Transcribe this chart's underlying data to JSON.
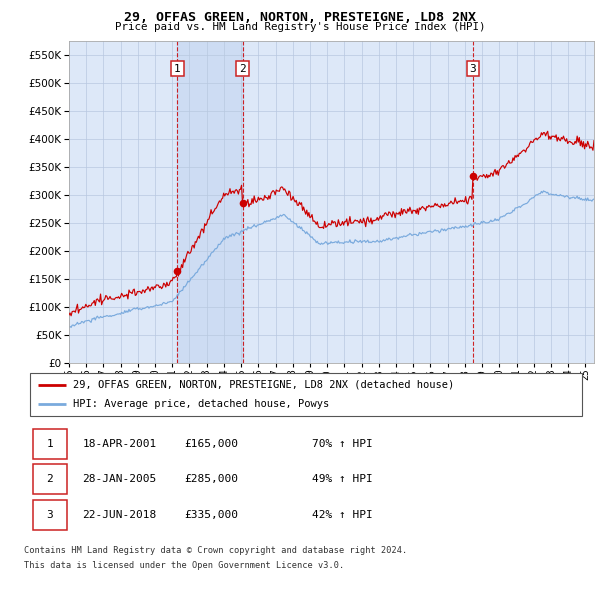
{
  "title": "29, OFFAS GREEN, NORTON, PRESTEIGNE, LD8 2NX",
  "subtitle": "Price paid vs. HM Land Registry's House Price Index (HPI)",
  "ytick_values": [
    0,
    50000,
    100000,
    150000,
    200000,
    250000,
    300000,
    350000,
    400000,
    450000,
    500000,
    550000
  ],
  "ylim": [
    0,
    575000
  ],
  "t1": 2001.3,
  "t2": 2005.08,
  "t3": 2018.47,
  "p1": 165000,
  "p2": 285000,
  "p3": 335000,
  "legend_line1": "29, OFFAS GREEN, NORTON, PRESTEIGNE, LD8 2NX (detached house)",
  "legend_line2": "HPI: Average price, detached house, Powys",
  "footer1": "Contains HM Land Registry data © Crown copyright and database right 2024.",
  "footer2": "This data is licensed under the Open Government Licence v3.0.",
  "red_color": "#cc0000",
  "blue_color": "#7aaadd",
  "background_color": "#ffffff",
  "plot_bg_color": "#dde8f8",
  "grid_color": "#b8c8e0",
  "box_color": "#cc2222",
  "row_data": [
    [
      "1",
      "18-APR-2001",
      "£165,000",
      "70% ↑ HPI"
    ],
    [
      "2",
      "28-JAN-2005",
      "£285,000",
      "49% ↑ HPI"
    ],
    [
      "3",
      "22-JUN-2018",
      "£335,000",
      "42% ↑ HPI"
    ]
  ]
}
